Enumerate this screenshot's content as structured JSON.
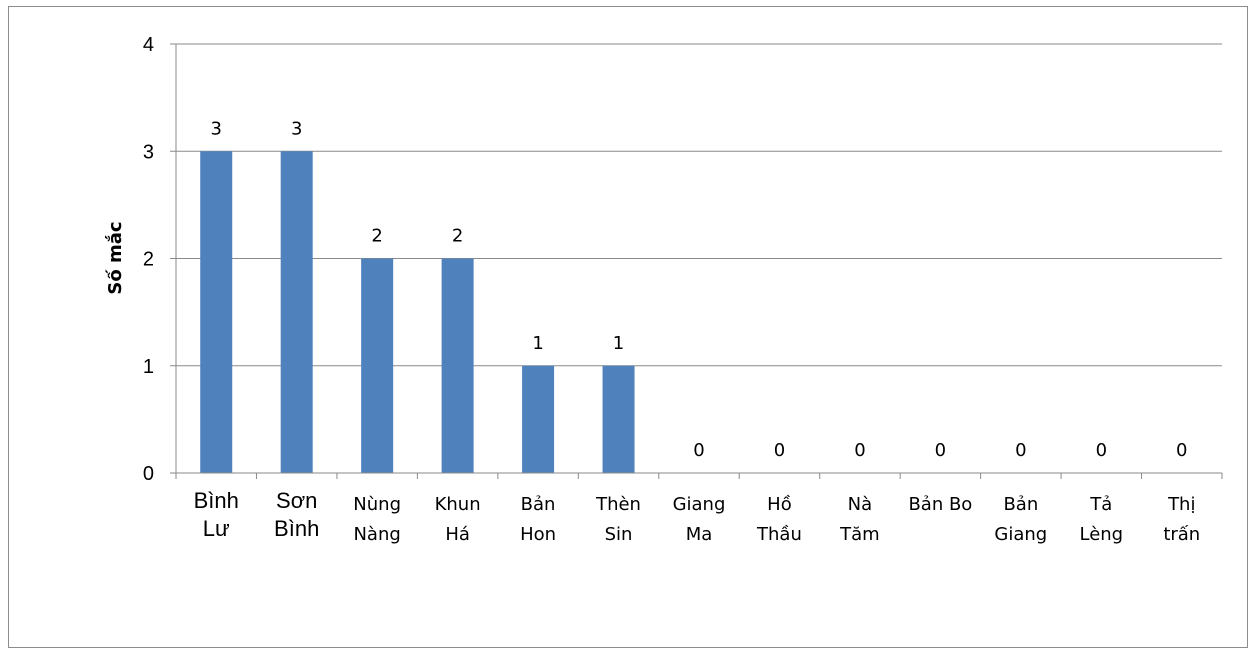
{
  "chart_data": {
    "type": "bar",
    "title": "",
    "xlabel": "",
    "ylabel": "Số mắc",
    "ylim": [
      0,
      4
    ],
    "yticks": [
      0,
      1,
      2,
      3,
      4
    ],
    "grid": true,
    "bar_color": "#4f81bd",
    "categories": [
      [
        "Bình",
        "Lư"
      ],
      [
        "Sơn",
        "Bình"
      ],
      [
        "Nùng",
        "Nàng"
      ],
      [
        "Khun",
        "Há"
      ],
      [
        "Bản",
        "Hon"
      ],
      [
        "Thèn",
        "Sin"
      ],
      [
        "Giang",
        "Ma"
      ],
      [
        "Hồ",
        "Thầu"
      ],
      [
        "Nà",
        "Tăm"
      ],
      [
        "Bản Bo"
      ],
      [
        "Bản",
        "Giang"
      ],
      [
        "Tả",
        "Lèng"
      ],
      [
        "Thị",
        "trấn"
      ]
    ],
    "values": [
      3,
      3,
      2,
      2,
      1,
      1,
      0,
      0,
      0,
      0,
      0,
      0,
      0
    ]
  }
}
